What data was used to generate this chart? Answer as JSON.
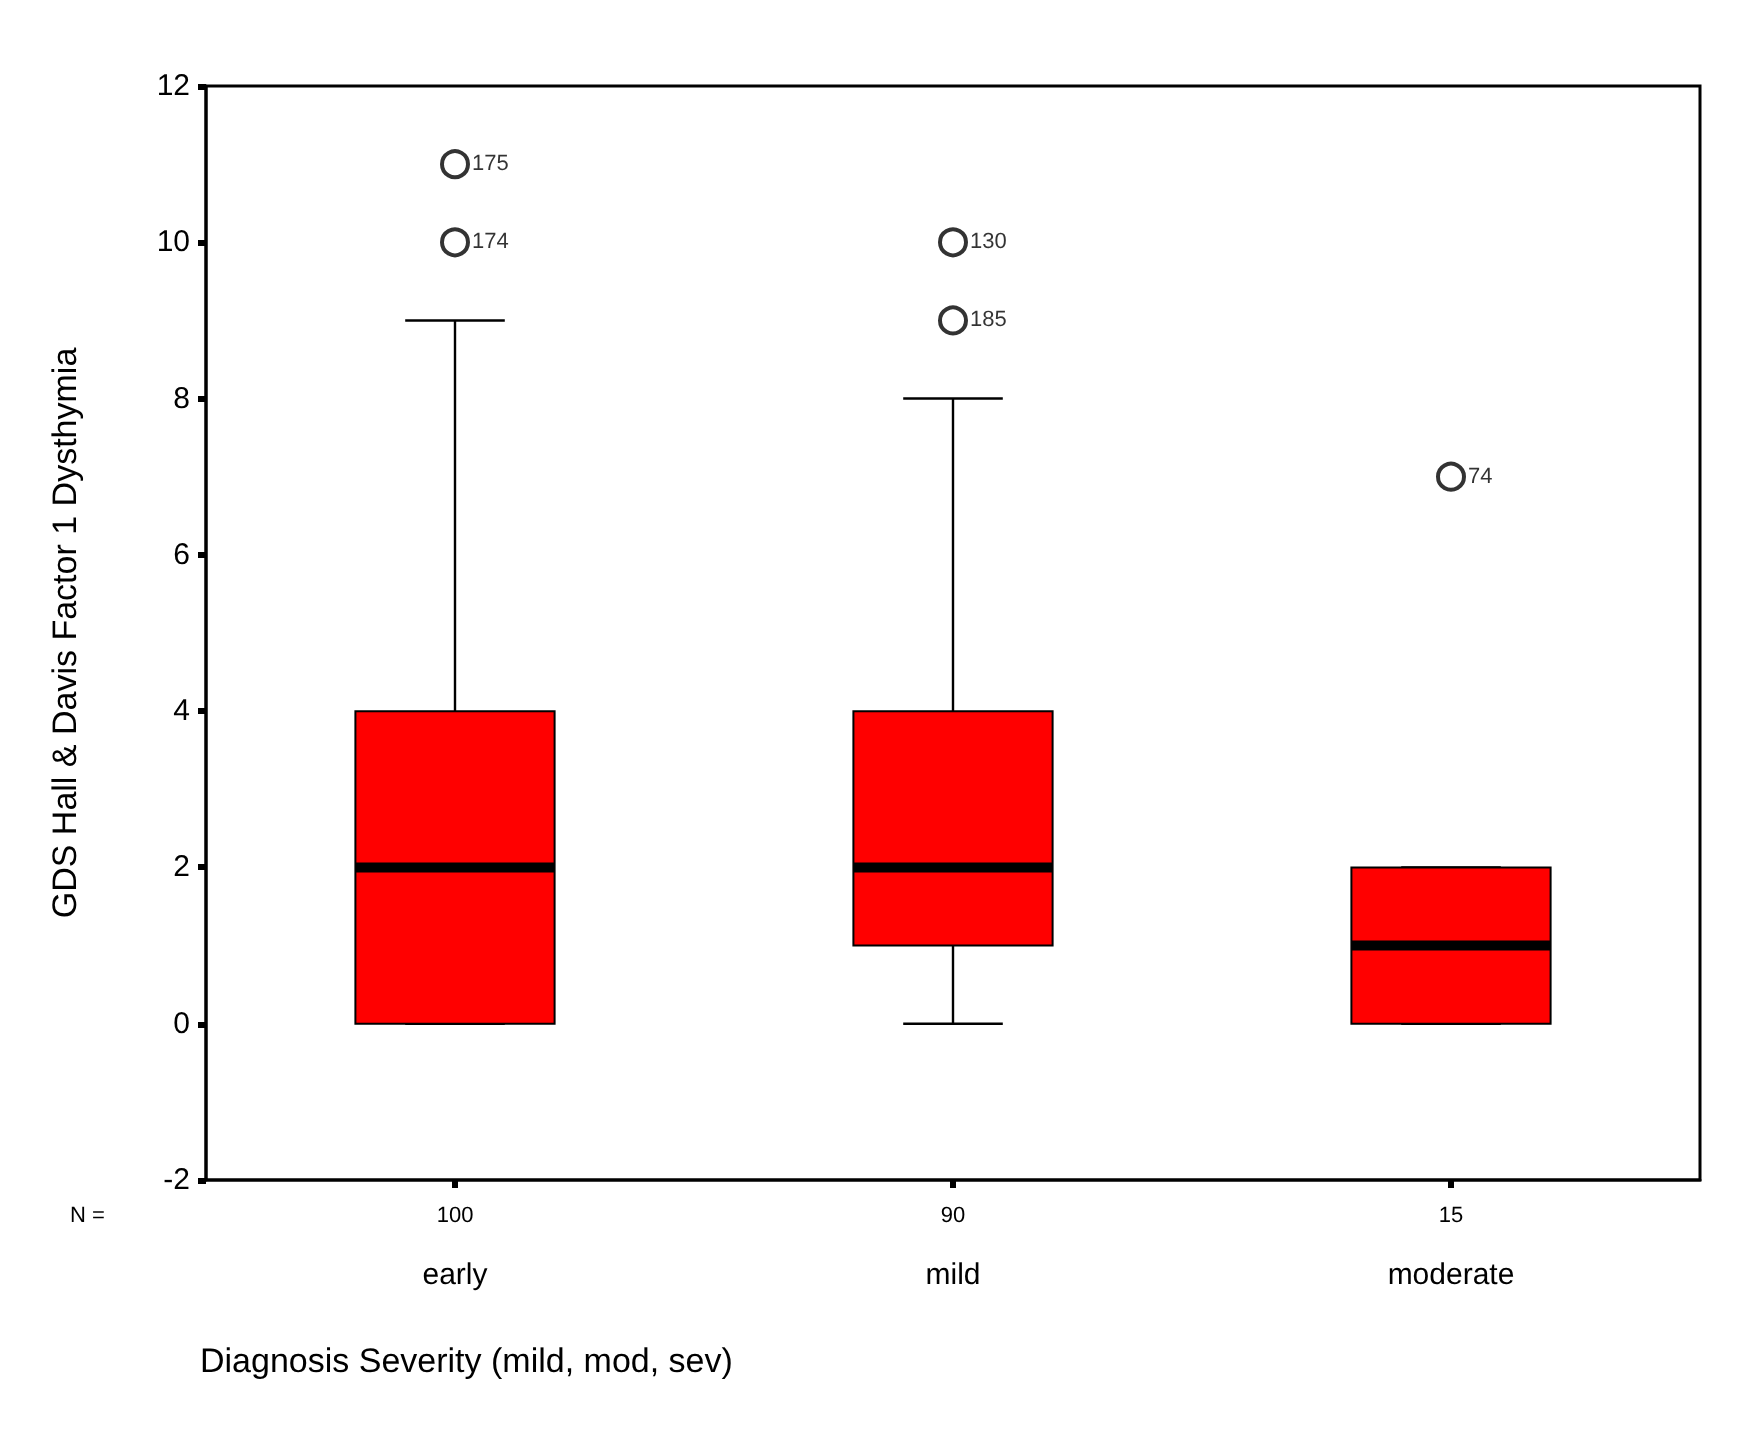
{
  "chart_data": {
    "type": "box",
    "xlabel": "Diagnosis Severity (mild, mod, sev)",
    "ylabel": "GDS Hall & Davis Factor 1 Dysthymia",
    "categories": [
      "early",
      "mild",
      "moderate"
    ],
    "boxes": [
      {
        "low": 0,
        "q1": 0,
        "median": 2,
        "q3": 4,
        "high": 9,
        "outliers": [
          10,
          11
        ]
      },
      {
        "low": 0,
        "q1": 1,
        "median": 2,
        "q3": 4,
        "high": 8,
        "outliers": [
          9,
          10
        ]
      },
      {
        "low": 0,
        "q1": 0,
        "median": 1,
        "q3": 2,
        "high": 2,
        "outliers": [
          7
        ]
      }
    ],
    "color": "#ff0000",
    "ylim": [
      -2,
      12
    ],
    "yticks": [
      -2,
      0,
      2,
      4,
      6,
      8,
      10,
      12
    ],
    "grid": false,
    "annotations": [
      "N =",
      "100",
      "90",
      "15",
      "174",
      "175",
      "185",
      "130",
      "74"
    ]
  }
}
